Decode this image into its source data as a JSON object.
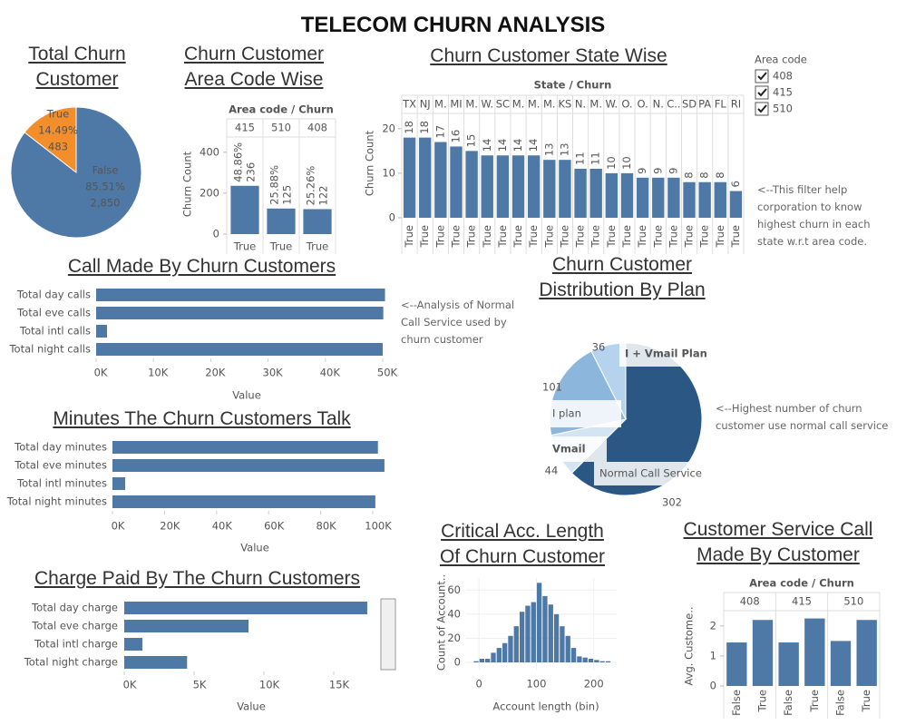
{
  "title": "TELECOM CHURN ANALYSIS",
  "chart_data": [
    {
      "type": "pie",
      "title": "Total Churn Customer",
      "categories": [
        "False",
        "True"
      ],
      "values": [
        2850,
        483
      ],
      "value_labels": [
        "2,850",
        "483"
      ],
      "percents": [
        {
          "value": 85.51,
          "label": "85.51%"
        },
        {
          "value": 14.49,
          "label": "14.49%"
        }
      ],
      "colors": [
        "#4e79a7",
        "#f28e2b"
      ]
    },
    {
      "type": "bar",
      "title": "Churn Customer Area Code Wise",
      "header": "Area code / Churn",
      "groups": [
        "415",
        "510",
        "408"
      ],
      "categories": [
        "True",
        "True",
        "True"
      ],
      "values": [
        236,
        125,
        122
      ],
      "percents": [
        {
          "value": 48.86,
          "label": "48.86%"
        },
        {
          "value": 25.88,
          "label": "25.88%"
        },
        {
          "value": 25.26,
          "label": "25.26%"
        }
      ],
      "color": "#4e79a7",
      "y_label": "Churn Count",
      "ylim": [
        0,
        470
      ],
      "yticks": [
        0,
        200,
        400
      ]
    },
    {
      "type": "bar",
      "title": "Churn Customer State Wise",
      "header": "State / Churn",
      "groups": [
        "TX",
        "NJ",
        "M.",
        "MI",
        "M.",
        "W.",
        "SC",
        "M.",
        "M.",
        "M.",
        "KS",
        "N.",
        "M.",
        "W.",
        "O.",
        "O.",
        "N.",
        "C..",
        "SD",
        "PA",
        "FL",
        "RI"
      ],
      "categories": [
        "True",
        "True",
        "True",
        "True",
        "True",
        "True",
        "True",
        "True",
        "True",
        "True",
        "True",
        "True",
        "True",
        "True",
        "True",
        "True",
        "True",
        "True",
        "True",
        "True",
        "True",
        "True"
      ],
      "values": [
        18,
        18,
        17,
        16,
        15,
        14,
        14,
        14,
        14,
        13,
        13,
        11,
        11,
        10,
        10,
        9,
        9,
        9,
        8,
        8,
        8,
        6
      ],
      "color": "#4e79a7",
      "y_label": "Churn Count",
      "ylim": [
        0,
        22
      ],
      "yticks": [
        0,
        10,
        20
      ],
      "annotation": "<--This filter help corporation to know highest churn in each state w.r.t area code.",
      "filter": {
        "title": "Area code",
        "options": [
          "408",
          "415",
          "510"
        ]
      }
    },
    {
      "type": "hbar",
      "title": "Call Made By Churn Customers",
      "categories": [
        "Total day calls",
        "Total eve calls",
        "Total intl calls",
        "Total night calls"
      ],
      "values": [
        50400,
        50100,
        1900,
        50000
      ],
      "color": "#4e79a7",
      "x_label": "Value",
      "xlim": [
        0,
        50000
      ],
      "xticks": [
        {
          "value": 0,
          "label": "0K"
        },
        {
          "value": 10000,
          "label": "10K"
        },
        {
          "value": 20000,
          "label": "20K"
        },
        {
          "value": 30000,
          "label": "30K"
        },
        {
          "value": 40000,
          "label": "40K"
        },
        {
          "value": 50000,
          "label": "50K"
        }
      ],
      "annotation": "<--Analysis of Normal Call Service used by churn customer"
    },
    {
      "type": "hbar",
      "title": "Minutes The Churn Customers Talk",
      "categories": [
        "Total day minutes",
        "Total eve minutes",
        "Total intl minutes",
        "Total night minutes"
      ],
      "values": [
        102000,
        104500,
        4900,
        101000
      ],
      "color": "#4e79a7",
      "x_label": "Value",
      "xlim": [
        0,
        100000
      ],
      "xticks": [
        {
          "value": 0,
          "label": "0K"
        },
        {
          "value": 20000,
          "label": "20K"
        },
        {
          "value": 40000,
          "label": "40K"
        },
        {
          "value": 60000,
          "label": "60K"
        },
        {
          "value": 80000,
          "label": "80K"
        },
        {
          "value": 100000,
          "label": "100K"
        }
      ]
    },
    {
      "type": "hbar",
      "title": "Charge Paid By The Churn Customers",
      "categories": [
        "Total day charge",
        "Total eve charge",
        "Total intl charge",
        "Total night charge"
      ],
      "values": [
        17400,
        8900,
        1300,
        4500
      ],
      "color": "#4e79a7",
      "x_label": "Value",
      "xlim": [
        0,
        15000
      ],
      "xticks": [
        {
          "value": 0,
          "label": "0K"
        },
        {
          "value": 5000,
          "label": "5K"
        },
        {
          "value": 10000,
          "label": "10K"
        },
        {
          "value": 15000,
          "label": "15K"
        }
      ]
    },
    {
      "type": "pie",
      "title": "Churn Customer Distribution By Plan",
      "categories": [
        "Normal Call Service",
        "Vmail",
        "I plan",
        "I + Vmail Plan"
      ],
      "values": [
        302,
        44,
        101,
        36
      ],
      "colors": [
        "#2a5783",
        "#d3e4f3",
        "#8db6dc",
        "#b6d3ee"
      ],
      "annotation": "<--Highest number of churn customer use normal call service"
    },
    {
      "type": "histogram",
      "title": "Critical Acc. Length Of Churn Customer",
      "x_label": "Account length (bin)",
      "y_label": "Count of Account..",
      "bins": [
        -10,
        0,
        10,
        20,
        30,
        40,
        50,
        60,
        70,
        80,
        90,
        100,
        110,
        120,
        130,
        140,
        150,
        160,
        170,
        180,
        190,
        200,
        210,
        220,
        230
      ],
      "values": [
        1,
        3,
        3,
        8,
        12,
        16,
        22,
        30,
        42,
        47,
        50,
        66,
        55,
        48,
        40,
        30,
        22,
        12,
        5,
        4,
        3,
        2,
        1,
        1
      ],
      "color": "#4e79a7",
      "xlim": [
        -24,
        240
      ],
      "ylim": [
        -6,
        70
      ],
      "xticks": [
        0,
        100,
        200
      ],
      "yticks": [
        0,
        20,
        40,
        60
      ]
    },
    {
      "type": "bar",
      "title": "Customer Service Call Made By  Customer",
      "header": "Area code / Churn",
      "groups": [
        "408",
        "415",
        "510"
      ],
      "categories": [
        "False",
        "True",
        "False",
        "True",
        "False",
        "True"
      ],
      "values": [
        1.45,
        2.2,
        1.45,
        2.25,
        1.5,
        2.2
      ],
      "color": "#4e79a7",
      "y_label": "Avg. Custome..",
      "ylim": [
        0,
        2.6
      ],
      "yticks": [
        0,
        1,
        2
      ]
    }
  ]
}
